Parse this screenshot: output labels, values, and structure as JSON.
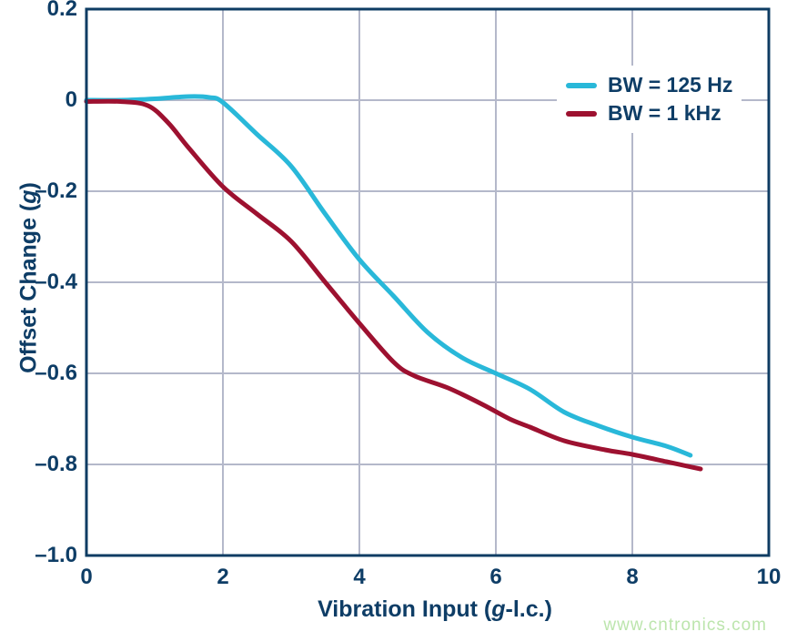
{
  "colors": {
    "axis": "#0e3c63",
    "text": "#0e3d66",
    "grid": "#b4b8ca",
    "background": "#ffffff",
    "watermark": "#bce5ad"
  },
  "watermark": {
    "text": "www.cntronics.com"
  },
  "chart_data": {
    "type": "line",
    "title": "",
    "xlabel": "Vibration Input (g-l.c.)",
    "xlabel_pre": "Vibration Input (",
    "xlabel_italic": "g",
    "xlabel_post": "-l.c.)",
    "ylabel": "Offset Change (g)",
    "ylabel_pre": "Offset Change (",
    "ylabel_italic": "g",
    "ylabel_post": ")",
    "xlim": [
      0,
      10
    ],
    "ylim": [
      -1.0,
      0.2
    ],
    "grid": true,
    "legend_position": "top-right",
    "xticks": [
      {
        "v": 0,
        "label": "0"
      },
      {
        "v": 2,
        "label": "2"
      },
      {
        "v": 4,
        "label": "4"
      },
      {
        "v": 6,
        "label": "6"
      },
      {
        "v": 8,
        "label": "8"
      },
      {
        "v": 10,
        "label": "10"
      }
    ],
    "yticks": [
      {
        "v": 0.2,
        "label": "0.2"
      },
      {
        "v": 0,
        "label": "0"
      },
      {
        "v": -0.2,
        "label": "–0.2"
      },
      {
        "v": -0.4,
        "label": "–0.4"
      },
      {
        "v": -0.6,
        "label": "–0.6"
      },
      {
        "v": -0.8,
        "label": "–0.8"
      },
      {
        "v": -1.0,
        "label": "–1.0"
      }
    ],
    "series": [
      {
        "name": "BW = 125 Hz",
        "color": "#29b8d9",
        "points": [
          [
            0,
            0
          ],
          [
            0.5,
            0
          ],
          [
            1.0,
            0.003
          ],
          [
            1.5,
            0.008
          ],
          [
            1.8,
            0.006
          ],
          [
            2.0,
            -0.005
          ],
          [
            2.5,
            -0.075
          ],
          [
            3.0,
            -0.145
          ],
          [
            3.5,
            -0.25
          ],
          [
            4.0,
            -0.35
          ],
          [
            4.5,
            -0.43
          ],
          [
            5.0,
            -0.51
          ],
          [
            5.5,
            -0.565
          ],
          [
            6.0,
            -0.6
          ],
          [
            6.5,
            -0.635
          ],
          [
            7.0,
            -0.685
          ],
          [
            7.5,
            -0.715
          ],
          [
            8.0,
            -0.74
          ],
          [
            8.5,
            -0.76
          ],
          [
            8.85,
            -0.78
          ]
        ]
      },
      {
        "name": "BW = 1 kHz",
        "color": "#9d1130",
        "points": [
          [
            0,
            -0.003
          ],
          [
            0.5,
            -0.003
          ],
          [
            0.9,
            -0.012
          ],
          [
            1.2,
            -0.05
          ],
          [
            1.5,
            -0.105
          ],
          [
            2.0,
            -0.19
          ],
          [
            2.5,
            -0.25
          ],
          [
            3.0,
            -0.31
          ],
          [
            3.5,
            -0.4
          ],
          [
            4.0,
            -0.49
          ],
          [
            4.5,
            -0.575
          ],
          [
            4.8,
            -0.605
          ],
          [
            5.3,
            -0.632
          ],
          [
            5.8,
            -0.668
          ],
          [
            6.2,
            -0.7
          ],
          [
            6.5,
            -0.718
          ],
          [
            7.0,
            -0.748
          ],
          [
            7.6,
            -0.768
          ],
          [
            8.0,
            -0.778
          ],
          [
            8.5,
            -0.794
          ],
          [
            9.0,
            -0.81
          ]
        ]
      }
    ]
  }
}
